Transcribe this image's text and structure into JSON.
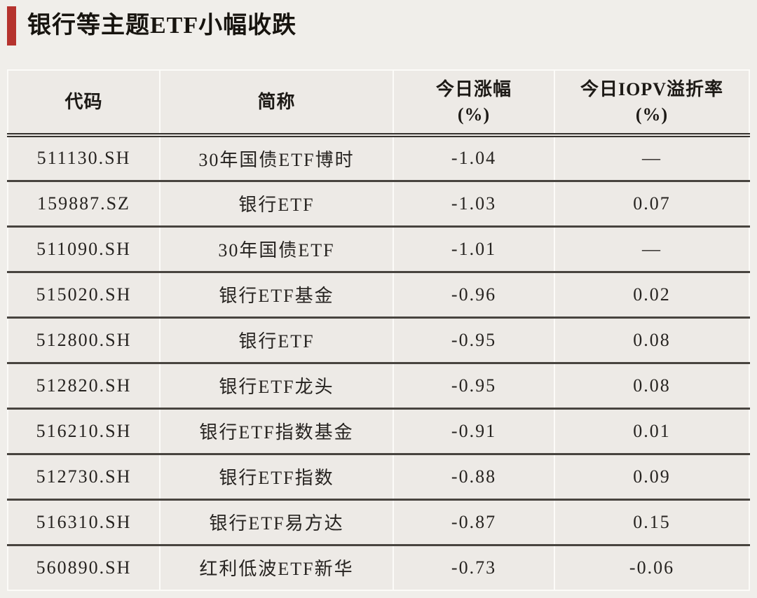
{
  "page": {
    "title": "银行等主题ETF小幅收跌"
  },
  "colors": {
    "accent_red": "#b5332e",
    "page_background": "#f0eeea",
    "cell_background": "#edeae6",
    "divider_light": "#fcfbf8",
    "divider_dark": "#48443f",
    "text": "#262320"
  },
  "chart_data": {
    "type": "table",
    "title": "银行等主题ETF小幅收跌",
    "columns": [
      "代码",
      "简称",
      "今日涨幅(%)",
      "今日IOPV溢折率(%)"
    ],
    "header_display": {
      "code": "代码",
      "name": "简称",
      "change_l1": "今日涨幅",
      "change_l2": "(%)",
      "iopv_l1": "今日IOPV溢折率",
      "iopv_l2": "(%)"
    },
    "rows": [
      {
        "code": "511130.SH",
        "name": "30年国债ETF博时",
        "change": "-1.04",
        "iopv": "—"
      },
      {
        "code": "159887.SZ",
        "name": "银行ETF",
        "change": "-1.03",
        "iopv": "0.07"
      },
      {
        "code": "511090.SH",
        "name": "30年国债ETF",
        "change": "-1.01",
        "iopv": "—"
      },
      {
        "code": "515020.SH",
        "name": "银行ETF基金",
        "change": "-0.96",
        "iopv": "0.02"
      },
      {
        "code": "512800.SH",
        "name": "银行ETF",
        "change": "-0.95",
        "iopv": "0.08"
      },
      {
        "code": "512820.SH",
        "name": "银行ETF龙头",
        "change": "-0.95",
        "iopv": "0.08"
      },
      {
        "code": "516210.SH",
        "name": "银行ETF指数基金",
        "change": "-0.91",
        "iopv": "0.01"
      },
      {
        "code": "512730.SH",
        "name": "银行ETF指数",
        "change": "-0.88",
        "iopv": "0.09"
      },
      {
        "code": "516310.SH",
        "name": "银行ETF易方达",
        "change": "-0.87",
        "iopv": "0.15"
      },
      {
        "code": "560890.SH",
        "name": "红利低波ETF新华",
        "change": "-0.73",
        "iopv": "-0.06"
      }
    ]
  }
}
